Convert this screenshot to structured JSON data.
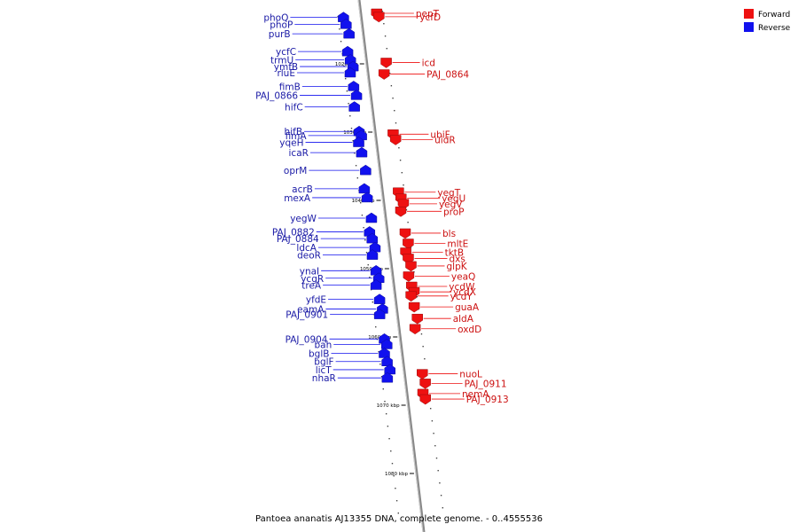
{
  "caption": "Pantoea ananatis AJ13355 DNA, complete genome. - 0..4555536",
  "legend": [
    {
      "label": "Forward",
      "color": "#ee1111"
    },
    {
      "label": "Reverse",
      "color": "#1111ee"
    }
  ],
  "colors": {
    "forward": "#ee1111",
    "reverse": "#1111ee",
    "axis": "#888888"
  },
  "ticks": [
    {
      "kbp": 1020,
      "label": "1020 kbp"
    },
    {
      "kbp": 1030,
      "label": "1030 kbp"
    },
    {
      "kbp": 1040,
      "label": "1040 kbp"
    },
    {
      "kbp": 1050,
      "label": "1050 kbp"
    },
    {
      "kbp": 1060,
      "label": "1060 kbp"
    },
    {
      "kbp": 1070,
      "label": "1070 kbp"
    },
    {
      "kbp": 1080,
      "label": "1080 kbp"
    }
  ],
  "reverse_genes": [
    {
      "name": "phoQ",
      "kbp": 1013.2
    },
    {
      "name": "phoP",
      "kbp": 1014.2
    },
    {
      "name": "purB",
      "kbp": 1015.6
    },
    {
      "name": "ycfC",
      "kbp": 1018.2
    },
    {
      "name": "trmU",
      "kbp": 1019.4
    },
    {
      "name": "ymfB",
      "kbp": 1020.4
    },
    {
      "name": "rluE",
      "kbp": 1021.3
    },
    {
      "name": "fimB",
      "kbp": 1023.3
    },
    {
      "name": "PAJ_0866",
      "kbp": 1024.6
    },
    {
      "name": "hifC",
      "kbp": 1026.3
    },
    {
      "name": "hifB",
      "kbp": 1029.9
    },
    {
      "name": "fimA",
      "kbp": 1030.5
    },
    {
      "name": "yqeH",
      "kbp": 1031.5
    },
    {
      "name": "icaR",
      "kbp": 1033.0
    },
    {
      "name": "oprM",
      "kbp": 1035.6
    },
    {
      "name": "acrB",
      "kbp": 1038.3
    },
    {
      "name": "mexA",
      "kbp": 1039.6
    },
    {
      "name": "yegW",
      "kbp": 1042.6
    },
    {
      "name": "PAJ_0882",
      "kbp": 1044.6
    },
    {
      "name": "PAJ_0884",
      "kbp": 1045.6
    },
    {
      "name": "ldcA",
      "kbp": 1046.9
    },
    {
      "name": "deoR",
      "kbp": 1048.0
    },
    {
      "name": "ynaI",
      "kbp": 1050.3
    },
    {
      "name": "ycgR",
      "kbp": 1051.4
    },
    {
      "name": "treA",
      "kbp": 1052.4
    },
    {
      "name": "yfdE",
      "kbp": 1054.5
    },
    {
      "name": "eamA",
      "kbp": 1055.9
    },
    {
      "name": "PAJ_0901",
      "kbp": 1056.7
    },
    {
      "name": "PAJ_0904",
      "kbp": 1060.3
    },
    {
      "name": "bah",
      "kbp": 1061.1
    },
    {
      "name": "bglB",
      "kbp": 1062.4
    },
    {
      "name": "bglF",
      "kbp": 1063.6
    },
    {
      "name": "licT",
      "kbp": 1064.8
    },
    {
      "name": "nhaR",
      "kbp": 1066.0
    }
  ],
  "forward_genes": [
    {
      "name": "pepT",
      "kbp": 1012.6
    },
    {
      "name": "ycfD",
      "kbp": 1013.1
    },
    {
      "name": "icd",
      "kbp": 1019.8
    },
    {
      "name": "PAJ_0864",
      "kbp": 1021.5
    },
    {
      "name": "ubiF",
      "kbp": 1030.3
    },
    {
      "name": "uidR",
      "kbp": 1031.1
    },
    {
      "name": "yegT",
      "kbp": 1038.8
    },
    {
      "name": "yegU",
      "kbp": 1039.7
    },
    {
      "name": "yegV",
      "kbp": 1040.5
    },
    {
      "name": "proP",
      "kbp": 1041.6
    },
    {
      "name": "bls",
      "kbp": 1044.8
    },
    {
      "name": "mltE",
      "kbp": 1046.3
    },
    {
      "name": "tktB",
      "kbp": 1047.6
    },
    {
      "name": "dxs",
      "kbp": 1048.5
    },
    {
      "name": "glpK",
      "kbp": 1049.6
    },
    {
      "name": "yeaQ",
      "kbp": 1051.1
    },
    {
      "name": "ycdW",
      "kbp": 1052.6
    },
    {
      "name": "ycdX",
      "kbp": 1053.4
    },
    {
      "name": "ycdY",
      "kbp": 1054.0
    },
    {
      "name": "guaA",
      "kbp": 1055.6
    },
    {
      "name": "aldA",
      "kbp": 1057.3
    },
    {
      "name": "oxdD",
      "kbp": 1058.8
    },
    {
      "name": "nuoL",
      "kbp": 1065.4
    },
    {
      "name": "PAJ_0911",
      "kbp": 1066.8
    },
    {
      "name": "nemA",
      "kbp": 1068.3
    },
    {
      "name": "PAJ_0913",
      "kbp": 1069.1
    }
  ]
}
